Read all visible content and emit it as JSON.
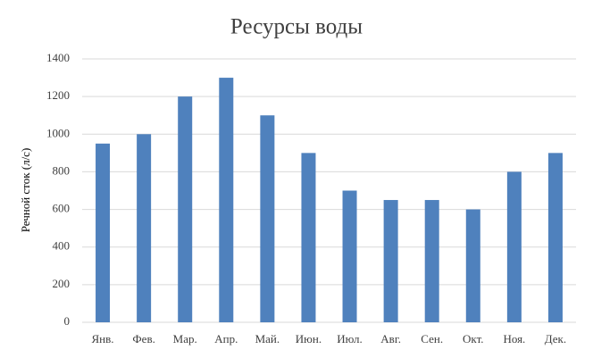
{
  "chart_data": {
    "type": "bar",
    "title": "Ресурсы воды",
    "y_label": "Речной сток (л/с)",
    "categories": [
      "Янв.",
      "Фев.",
      "Мар.",
      "Апр.",
      "Май.",
      "Июн.",
      "Июл.",
      "Авг.",
      "Сен.",
      "Окт.",
      "Ноя.",
      "Дек."
    ],
    "values": [
      950,
      1000,
      1200,
      1300,
      1100,
      900,
      700,
      650,
      650,
      600,
      800,
      900
    ],
    "color": "#4f81bd",
    "ylim": [
      0,
      1400
    ],
    "yticks": [
      0,
      200,
      400,
      600,
      800,
      1000,
      1200,
      1400
    ],
    "grid": true
  }
}
